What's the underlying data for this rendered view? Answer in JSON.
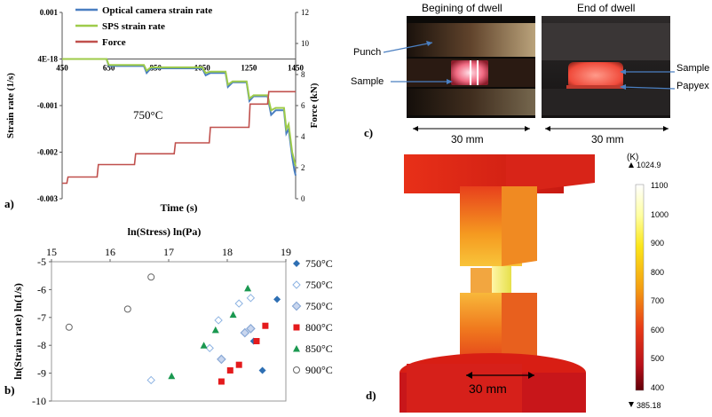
{
  "panel_a": {
    "letter": "a)",
    "annotation": "750°C",
    "legend": [
      "Optical camera strain rate",
      "SPS strain rate",
      "Force"
    ],
    "left_ylabel": "Strain rate (1/s)",
    "right_ylabel": "Force (kN)",
    "xlabel": "Time (s)",
    "left_ticks": [
      "0.001",
      "4E-18",
      "-0.001",
      "-0.002",
      "-0.003"
    ],
    "right_ticks": [
      "12",
      "10",
      "8",
      "6",
      "4",
      "2",
      "0"
    ],
    "x_ticks": [
      "450",
      "650",
      "850",
      "1050",
      "1250",
      "1450"
    ]
  },
  "panel_b": {
    "letter": "b)",
    "top_label": "ln(Stress)  ln(Pa)",
    "ylabel": "ln(Strain rate)  ln(1/s)",
    "x_ticks": [
      "15",
      "16",
      "17",
      "18",
      "19"
    ],
    "y_ticks": [
      "-5",
      "-6",
      "-7",
      "-8",
      "-9",
      "-10"
    ],
    "legend": [
      "750°C",
      "750°C",
      "750°C",
      "800°C",
      "850°C",
      "900°C"
    ]
  },
  "panel_c": {
    "letter": "c)",
    "title_left": "Begining of dwell",
    "title_right": "End of dwell",
    "label_punch": "Punch",
    "label_sample_left": "Sample",
    "label_sample_right": "Sample",
    "label_papyex": "Papyex",
    "scale_left": "30 mm",
    "scale_right": "30 mm"
  },
  "panel_d": {
    "letter": "d)",
    "scale": "30 mm",
    "unit": "(K)",
    "max_marker": "1024.9",
    "min_marker": "385.18",
    "colorbar_ticks": [
      "1100",
      "1000",
      "900",
      "800",
      "700",
      "600",
      "500",
      "400"
    ]
  },
  "chart_data": [
    {
      "type": "line",
      "title": "",
      "xlabel": "Time (s)",
      "ylabel": "Strain rate (1/s)",
      "y2label": "Force (kN)",
      "xlim": [
        450,
        1450
      ],
      "ylim": [
        -0.003,
        0.001
      ],
      "y2lim": [
        0,
        12
      ],
      "series": [
        {
          "name": "Optical camera strain rate",
          "axis": "left",
          "color": "#4a7fc1",
          "x": [
            450,
            640,
            650,
            800,
            812,
            830,
            1050,
            1065,
            1085,
            1150,
            1160,
            1180,
            1240,
            1252,
            1270,
            1330,
            1345,
            1365,
            1400,
            1410,
            1420,
            1435,
            1445,
            1450
          ],
          "y": [
            0,
            0,
            -0.00015,
            -0.00015,
            -0.0003,
            -0.0002,
            -0.0002,
            -0.00035,
            -0.0003,
            -0.0003,
            -0.0006,
            -0.0005,
            -0.0005,
            -0.0009,
            -0.0008,
            -0.0008,
            -0.0012,
            -0.0011,
            -0.0011,
            -0.0016,
            -0.0015,
            -0.0021,
            -0.0024,
            -0.0025
          ]
        },
        {
          "name": "SPS strain rate",
          "axis": "left",
          "color": "#9ecb4a",
          "x": [
            450,
            640,
            650,
            800,
            812,
            830,
            1050,
            1065,
            1085,
            1150,
            1160,
            1180,
            1240,
            1252,
            1270,
            1330,
            1345,
            1365,
            1400,
            1410,
            1420,
            1435,
            1450
          ],
          "y": [
            0,
            0,
            -0.00013,
            -0.00013,
            -0.00025,
            -0.00018,
            -0.00018,
            -0.0003,
            -0.00027,
            -0.00027,
            -0.00055,
            -0.00048,
            -0.00048,
            -0.00085,
            -0.00078,
            -0.00078,
            -0.0011,
            -0.00105,
            -0.00105,
            -0.0015,
            -0.0014,
            -0.002,
            -0.0023
          ]
        },
        {
          "name": "Force",
          "axis": "right",
          "color": "#c0504d",
          "x": [
            450,
            470,
            475,
            600,
            605,
            760,
            765,
            930,
            935,
            1080,
            1085,
            1250,
            1255,
            1330,
            1335,
            1450
          ],
          "y": [
            1.0,
            1.0,
            1.4,
            1.4,
            2.2,
            2.2,
            2.9,
            2.9,
            3.6,
            3.6,
            4.6,
            4.6,
            6.1,
            6.1,
            6.9,
            6.9
          ]
        }
      ]
    },
    {
      "type": "scatter",
      "title": "",
      "xlabel": "ln(Stress)  ln(Pa)",
      "ylabel": "ln(Strain rate)  ln(1/s)",
      "xlim": [
        15,
        19
      ],
      "ylim": [
        -10,
        -5
      ],
      "series": [
        {
          "name": "750°C",
          "marker": "diamond-filled",
          "color": "#2e6fb3",
          "points": [
            [
              18.85,
              -6.35
            ],
            [
              18.45,
              -7.85
            ],
            [
              18.6,
              -8.9
            ]
          ]
        },
        {
          "name": "750°C",
          "marker": "diamond-open",
          "color": "#8db3e2",
          "points": [
            [
              16.7,
              -9.25
            ],
            [
              17.7,
              -8.1
            ],
            [
              17.85,
              -7.1
            ],
            [
              18.2,
              -6.5
            ],
            [
              18.4,
              -6.3
            ]
          ]
        },
        {
          "name": "750°C",
          "marker": "diamond-shaded",
          "color": "#8aa9d6",
          "points": [
            [
              17.9,
              -8.5
            ],
            [
              18.4,
              -7.4
            ],
            [
              18.3,
              -7.55
            ]
          ]
        },
        {
          "name": "800°C",
          "marker": "square",
          "color": "#e41a1c",
          "points": [
            [
              17.9,
              -9.3
            ],
            [
              18.05,
              -8.9
            ],
            [
              18.2,
              -8.7
            ],
            [
              18.5,
              -7.85
            ],
            [
              18.65,
              -7.3
            ]
          ]
        },
        {
          "name": "850°C",
          "marker": "triangle",
          "color": "#1a9850",
          "points": [
            [
              17.05,
              -9.1
            ],
            [
              17.6,
              -8.0
            ],
            [
              17.8,
              -7.45
            ],
            [
              18.1,
              -6.9
            ],
            [
              18.35,
              -5.95
            ]
          ]
        },
        {
          "name": "900°C",
          "marker": "circle-open",
          "color": "#666666",
          "points": [
            [
              15.3,
              -7.35
            ],
            [
              16.3,
              -6.7
            ],
            [
              16.7,
              -5.55
            ]
          ]
        }
      ]
    }
  ]
}
